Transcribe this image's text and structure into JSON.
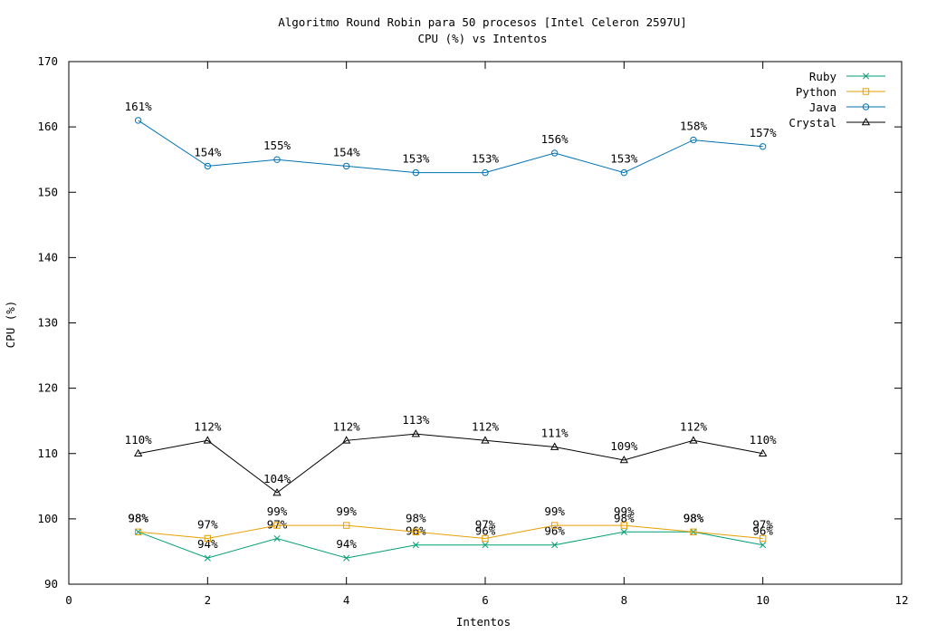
{
  "chart_data": {
    "type": "line",
    "title": "Algoritmo Round Robin para 50 procesos [Intel Celeron 2597U]",
    "subtitle": "CPU (%) vs Intentos",
    "xlabel": "Intentos",
    "ylabel": "CPU (%)",
    "xlim": [
      0,
      12
    ],
    "ylim": [
      90,
      170
    ],
    "xticks": [
      0,
      2,
      4,
      6,
      8,
      10,
      12
    ],
    "yticks": [
      90,
      100,
      110,
      120,
      130,
      140,
      150,
      160,
      170
    ],
    "grid": false,
    "legend_position": "top-right",
    "x": [
      1,
      2,
      3,
      4,
      5,
      6,
      7,
      8,
      9,
      10
    ],
    "series": [
      {
        "name": "Ruby",
        "color": "#009e73",
        "marker": "x",
        "values": [
          98,
          94,
          97,
          94,
          96,
          96,
          96,
          98,
          98,
          96
        ],
        "labels": [
          "98%",
          "94%",
          "97%",
          "94%",
          "96%",
          "96%",
          "96%",
          "98%",
          "98%",
          "96%"
        ]
      },
      {
        "name": "Python",
        "color": "#e69f00",
        "marker": "square",
        "values": [
          98,
          97,
          99,
          99,
          98,
          97,
          99,
          99,
          98,
          97
        ],
        "labels": [
          "98%",
          "97%",
          "99%",
          "99%",
          "98%",
          "97%",
          "99%",
          "99%",
          "98%",
          "97%"
        ]
      },
      {
        "name": "Java",
        "color": "#0072b2",
        "marker": "circle",
        "values": [
          161,
          154,
          155,
          154,
          153,
          153,
          156,
          153,
          158,
          157
        ],
        "labels": [
          "161%",
          "154%",
          "155%",
          "154%",
          "153%",
          "153%",
          "156%",
          "153%",
          "158%",
          "157%"
        ]
      },
      {
        "name": "Crystal",
        "color": "#000000",
        "marker": "triangle",
        "values": [
          110,
          112,
          104,
          112,
          113,
          112,
          111,
          109,
          112,
          110
        ],
        "labels": [
          "110%",
          "112%",
          "104%",
          "112%",
          "113%",
          "112%",
          "111%",
          "109%",
          "112%",
          "110%"
        ]
      }
    ]
  }
}
